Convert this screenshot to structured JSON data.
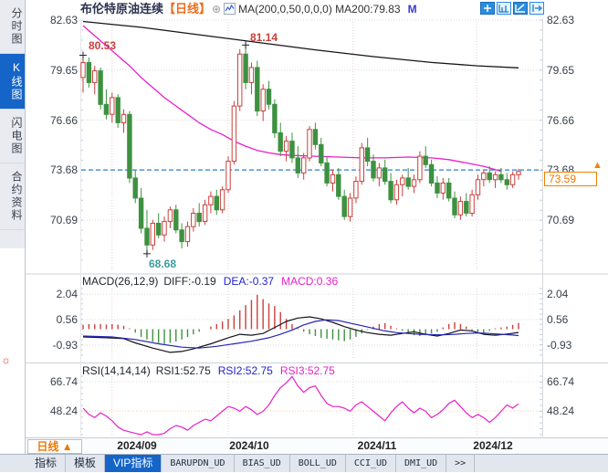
{
  "header": {
    "symbol": "布伦特原油连续",
    "period": "【日线】",
    "add_icon": "⊕",
    "ma_formula": "MA(200,0,50,0,0,0)",
    "ma200": "MA200:79.83",
    "ma_extra": "M"
  },
  "toolbar": {
    "icons": [
      "crosshair",
      "region-stat",
      "draw-line",
      "exit"
    ]
  },
  "sidebar": {
    "items": [
      {
        "label": "分时图",
        "active": false
      },
      {
        "label": "K线图",
        "active": true
      },
      {
        "label": "闪电图",
        "active": false
      },
      {
        "label": "合约资料",
        "active": false
      }
    ],
    "alert_icon": "☼"
  },
  "main_chart": {
    "price_marker_arrow": "▲"
  },
  "macd_panel": {
    "formula": "MACD(26,12,9)",
    "diff": "DIFF:-0.19",
    "dea": "DEA:-0.37",
    "macd": "MACD:0.36"
  },
  "rsi_panel": {
    "formula": "RSI(14,14,14)",
    "rsi1": "RSI1:52.75",
    "rsi2": "RSI2:52.75",
    "rsi3": "RSI3:52.75"
  },
  "x_axis": {
    "period_button": "日线 ▲",
    "dates": [
      "2024/09",
      "2024/10",
      "2024/11",
      "2024/12"
    ]
  },
  "tabs": [
    {
      "label": "指标",
      "active": false
    },
    {
      "label": "模板",
      "active": false
    },
    {
      "label": "VIP指标",
      "active": true
    },
    {
      "label": "BARUPDN_UD",
      "active": false
    },
    {
      "label": "BIAS_UD",
      "active": false
    },
    {
      "label": "BOLL_UD",
      "active": false
    },
    {
      "label": "CCI_UD",
      "active": false
    },
    {
      "label": "DMI_UD",
      "active": false
    },
    {
      "label": ">>",
      "active": false
    }
  ],
  "colors": {
    "up": "#c8403c",
    "down": "#3d9140",
    "ma200": "#15151a",
    "ma50": "#e620c8",
    "dea": "#2525b0",
    "rsi": "#e620c8",
    "accent_orange": "#f08000",
    "active_blue": "#1565c8",
    "dashed_price": "#2b7fd4"
  },
  "chart_data": {
    "type": "candlestick",
    "title": "布伦特原油连续 日线",
    "y_axis_ticks": [
      82.63,
      79.65,
      76.66,
      73.68,
      70.69
    ],
    "last_price": 73.59,
    "dashed_price": 73.68,
    "month_grid_indices": [
      5,
      25,
      46.5,
      67.8
    ],
    "candles": [
      [
        79.2,
        80.53,
        78.3,
        80.1
      ],
      [
        80.1,
        80.4,
        78.6,
        78.9
      ],
      [
        78.9,
        79.9,
        78.2,
        79.6
      ],
      [
        79.6,
        79.8,
        77.3,
        77.6
      ],
      [
        77.6,
        78.5,
        76.7,
        77.0
      ],
      [
        77.0,
        78.3,
        76.5,
        78.0
      ],
      [
        78.0,
        78.2,
        76.2,
        76.5
      ],
      [
        76.5,
        77.3,
        75.9,
        77.0
      ],
      [
        77.0,
        77.2,
        72.9,
        73.2
      ],
      [
        73.2,
        73.7,
        71.7,
        72.0
      ],
      [
        72.0,
        72.6,
        69.9,
        70.2
      ],
      [
        70.2,
        71.3,
        68.68,
        69.2
      ],
      [
        69.2,
        70.7,
        68.9,
        70.5
      ],
      [
        70.5,
        71.1,
        69.6,
        69.8
      ],
      [
        69.8,
        70.9,
        69.4,
        70.6
      ],
      [
        70.6,
        71.5,
        70.2,
        71.3
      ],
      [
        71.3,
        71.6,
        69.9,
        70.1
      ],
      [
        70.1,
        70.5,
        69.0,
        69.4
      ],
      [
        69.4,
        70.6,
        69.1,
        70.3
      ],
      [
        70.3,
        71.4,
        70.0,
        71.1
      ],
      [
        71.1,
        71.7,
        70.3,
        70.6
      ],
      [
        70.6,
        71.9,
        70.4,
        71.6
      ],
      [
        71.6,
        72.4,
        71.1,
        72.1
      ],
      [
        72.1,
        72.5,
        71.0,
        71.3
      ],
      [
        71.3,
        72.7,
        71.1,
        72.5
      ],
      [
        72.5,
        74.5,
        72.3,
        74.2
      ],
      [
        74.2,
        77.8,
        74.0,
        77.5
      ],
      [
        77.5,
        80.9,
        77.2,
        80.6
      ],
      [
        80.6,
        81.14,
        78.5,
        78.9
      ],
      [
        78.9,
        80.1,
        78.2,
        79.8
      ],
      [
        79.8,
        80.2,
        76.9,
        77.2
      ],
      [
        77.2,
        78.8,
        76.6,
        78.5
      ],
      [
        78.5,
        79.0,
        77.3,
        77.6
      ],
      [
        77.6,
        77.9,
        75.6,
        75.9
      ],
      [
        75.9,
        76.5,
        74.5,
        74.8
      ],
      [
        74.8,
        75.7,
        74.2,
        75.4
      ],
      [
        75.4,
        75.9,
        74.1,
        74.4
      ],
      [
        74.4,
        75.1,
        73.2,
        73.5
      ],
      [
        73.5,
        74.7,
        73.1,
        74.4
      ],
      [
        74.4,
        76.3,
        74.2,
        76.1
      ],
      [
        76.1,
        76.5,
        74.9,
        75.2
      ],
      [
        75.2,
        75.6,
        73.9,
        74.1
      ],
      [
        74.1,
        74.5,
        72.7,
        72.9
      ],
      [
        72.9,
        73.7,
        72.4,
        73.4
      ],
      [
        73.4,
        73.8,
        71.9,
        72.1
      ],
      [
        72.1,
        72.5,
        70.7,
        70.9
      ],
      [
        70.9,
        72.3,
        70.6,
        72.0
      ],
      [
        72.0,
        73.3,
        71.7,
        73.0
      ],
      [
        73.0,
        75.3,
        72.8,
        75.0
      ],
      [
        75.0,
        75.6,
        73.9,
        74.2
      ],
      [
        74.2,
        74.6,
        73.0,
        73.2
      ],
      [
        73.2,
        74.1,
        72.7,
        73.8
      ],
      [
        73.8,
        74.3,
        72.8,
        73.0
      ],
      [
        73.0,
        73.5,
        71.7,
        71.9
      ],
      [
        71.9,
        73.1,
        71.6,
        72.8
      ],
      [
        72.8,
        73.4,
        72.1,
        73.2
      ],
      [
        73.2,
        73.8,
        72.5,
        72.7
      ],
      [
        72.7,
        73.4,
        72.3,
        73.1
      ],
      [
        73.1,
        74.8,
        72.9,
        74.5
      ],
      [
        74.5,
        75.1,
        73.8,
        74.0
      ],
      [
        74.0,
        74.3,
        72.7,
        72.9
      ],
      [
        72.9,
        73.3,
        72.0,
        72.3
      ],
      [
        72.3,
        73.2,
        71.9,
        72.9
      ],
      [
        72.9,
        73.2,
        71.8,
        72.0
      ],
      [
        72.0,
        72.4,
        70.8,
        71.0
      ],
      [
        71.0,
        72.1,
        70.7,
        71.8
      ],
      [
        71.8,
        72.3,
        70.9,
        71.1
      ],
      [
        71.1,
        72.5,
        70.9,
        72.2
      ],
      [
        72.2,
        73.4,
        71.9,
        73.1
      ],
      [
        73.1,
        73.7,
        72.7,
        73.5
      ],
      [
        73.5,
        73.9,
        72.9,
        73.1
      ],
      [
        73.1,
        73.6,
        72.6,
        73.4
      ],
      [
        73.4,
        73.8,
        72.9,
        73.1
      ],
      [
        73.1,
        73.5,
        72.5,
        72.8
      ],
      [
        72.8,
        73.6,
        72.6,
        73.4
      ],
      [
        73.4,
        73.75,
        73.1,
        73.59
      ]
    ],
    "ma200_points": [
      [
        0,
        82.55
      ],
      [
        10,
        82.2
      ],
      [
        20,
        81.75
      ],
      [
        30,
        81.3
      ],
      [
        40,
        80.85
      ],
      [
        50,
        80.45
      ],
      [
        60,
        80.1
      ],
      [
        68,
        79.9
      ],
      [
        75,
        79.78
      ]
    ],
    "ma50_points": [
      [
        0,
        82.3
      ],
      [
        2,
        81.7
      ],
      [
        4,
        81.1
      ],
      [
        6,
        80.5
      ],
      [
        8,
        79.9
      ],
      [
        10,
        79.2
      ],
      [
        12,
        78.6
      ],
      [
        14,
        78.0
      ],
      [
        16,
        77.5
      ],
      [
        18,
        77.0
      ],
      [
        20,
        76.5
      ],
      [
        22,
        76.1
      ],
      [
        24,
        75.8
      ],
      [
        26,
        75.4
      ],
      [
        28,
        75.1
      ],
      [
        30,
        74.85
      ],
      [
        32,
        74.7
      ],
      [
        34,
        74.6
      ],
      [
        36,
        74.55
      ],
      [
        40,
        74.5
      ],
      [
        44,
        74.45
      ],
      [
        48,
        74.4
      ],
      [
        52,
        74.4
      ],
      [
        56,
        74.45
      ],
      [
        60,
        74.4
      ],
      [
        63,
        74.3
      ],
      [
        66,
        74.1
      ],
      [
        69,
        73.9
      ],
      [
        71,
        73.7
      ],
      [
        72,
        73.6
      ]
    ],
    "annotations": [
      {
        "index": 0,
        "price": 80.53,
        "label": "80.53",
        "color": "#c8403c"
      },
      {
        "index": 28,
        "price": 81.14,
        "label": "81.14",
        "color": "#c8403c"
      },
      {
        "index": 11,
        "price": 68.68,
        "label": "68.68",
        "color": "#3c9c9c"
      }
    ],
    "macd": {
      "params": "26,12,9",
      "diff_last": -0.19,
      "dea_last": -0.37,
      "macd_last": 0.36,
      "y_ticks": [
        2.04,
        0.56,
        -0.93
      ],
      "hist": [
        0.25,
        0.3,
        0.28,
        0.3,
        0.27,
        0.3,
        0.26,
        0.2,
        0.05,
        -0.2,
        -0.45,
        -0.6,
        -0.72,
        -0.8,
        -0.85,
        -0.8,
        -0.72,
        -0.6,
        -0.45,
        -0.3,
        -0.15,
        0.0,
        0.15,
        0.3,
        0.45,
        0.6,
        0.8,
        1.1,
        1.4,
        1.7,
        2.0,
        1.75,
        1.5,
        1.35,
        1.0,
        0.6,
        0.3,
        0.05,
        -0.15,
        -0.3,
        -0.4,
        -0.5,
        -0.55,
        -0.6,
        -0.65,
        -0.7,
        -0.6,
        -0.45,
        -0.25,
        -0.05,
        0.15,
        0.3,
        0.35,
        0.2,
        0.05,
        -0.1,
        -0.25,
        -0.35,
        -0.4,
        -0.35,
        -0.25,
        -0.15,
        0.1,
        0.3,
        0.4,
        0.3,
        0.15,
        -0.05,
        -0.15,
        -0.2,
        -0.1,
        0.05,
        0.1,
        0.15,
        0.25,
        0.36
      ],
      "diff_points": [
        [
          0,
          -0.45
        ],
        [
          4,
          -0.5
        ],
        [
          7,
          -0.55
        ],
        [
          9,
          -0.8
        ],
        [
          12,
          -1.1
        ],
        [
          15,
          -1.35
        ],
        [
          17,
          -1.3
        ],
        [
          19,
          -1.15
        ],
        [
          22,
          -0.85
        ],
        [
          25,
          -0.5
        ],
        [
          27,
          -0.3
        ],
        [
          29,
          -0.35
        ],
        [
          31,
          -0.25
        ],
        [
          33,
          0.1
        ],
        [
          35,
          0.45
        ],
        [
          37,
          0.65
        ],
        [
          39,
          0.72
        ],
        [
          41,
          0.6
        ],
        [
          43,
          0.4
        ],
        [
          45,
          0.15
        ],
        [
          47,
          -0.05
        ],
        [
          49,
          -0.2
        ],
        [
          51,
          -0.3
        ],
        [
          53,
          -0.35
        ],
        [
          55,
          -0.25
        ],
        [
          57,
          -0.15
        ],
        [
          59,
          -0.3
        ],
        [
          61,
          -0.4
        ],
        [
          63,
          -0.25
        ],
        [
          65,
          -0.05
        ],
        [
          67,
          -0.1
        ],
        [
          69,
          -0.3
        ],
        [
          71,
          -0.35
        ],
        [
          73,
          -0.28
        ],
        [
          75,
          -0.19
        ]
      ],
      "dea_points": [
        [
          0,
          -0.4
        ],
        [
          5,
          -0.45
        ],
        [
          9,
          -0.6
        ],
        [
          13,
          -0.85
        ],
        [
          17,
          -1.05
        ],
        [
          20,
          -1.1
        ],
        [
          23,
          -1.0
        ],
        [
          26,
          -0.85
        ],
        [
          29,
          -0.7
        ],
        [
          32,
          -0.5
        ],
        [
          34,
          -0.3
        ],
        [
          36,
          -0.05
        ],
        [
          38,
          0.25
        ],
        [
          40,
          0.45
        ],
        [
          42,
          0.55
        ],
        [
          44,
          0.5
        ],
        [
          46,
          0.35
        ],
        [
          48,
          0.2
        ],
        [
          50,
          0.05
        ],
        [
          52,
          -0.1
        ],
        [
          54,
          -0.2
        ],
        [
          56,
          -0.25
        ],
        [
          58,
          -0.3
        ],
        [
          60,
          -0.32
        ],
        [
          62,
          -0.33
        ],
        [
          64,
          -0.3
        ],
        [
          66,
          -0.25
        ],
        [
          68,
          -0.22
        ],
        [
          70,
          -0.25
        ],
        [
          72,
          -0.3
        ],
        [
          74,
          -0.34
        ],
        [
          75,
          -0.37
        ]
      ]
    },
    "rsi": {
      "params": "14,14,14",
      "rsi1": 52.75,
      "rsi2": 52.75,
      "rsi3": 52.75,
      "y_ticks": [
        66.74,
        48.24
      ],
      "values": [
        50,
        46,
        44,
        47,
        45,
        42,
        38,
        36,
        35,
        34,
        33,
        35,
        32,
        30,
        34,
        37,
        39,
        38,
        36,
        39,
        41,
        43,
        42,
        45,
        48,
        51,
        50,
        48,
        51,
        49,
        46,
        48,
        52,
        58,
        63,
        66,
        70,
        64,
        60,
        63,
        64,
        58,
        53,
        51,
        51,
        50,
        48,
        52,
        54,
        51,
        48,
        45,
        42,
        47,
        51,
        54,
        50,
        47,
        50,
        48,
        44,
        46,
        49,
        53,
        55,
        51,
        47,
        44,
        46,
        44,
        41,
        44,
        48,
        52,
        50,
        52.75
      ]
    }
  }
}
